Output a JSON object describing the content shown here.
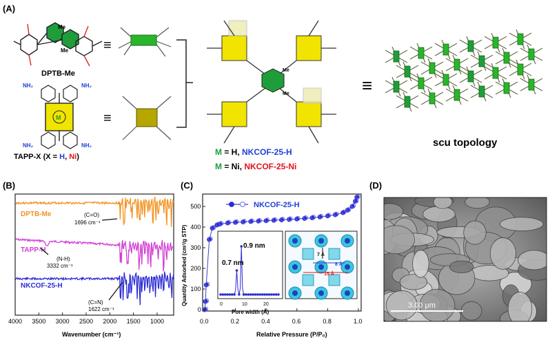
{
  "panels": {
    "a": {
      "label": "(A)"
    },
    "b": {
      "label": "(B)"
    },
    "c": {
      "label": "(C)"
    },
    "d": {
      "label": "(D)"
    }
  },
  "panel_a": {
    "monomer1_name": "DPTB-Me",
    "monomer2_name": "TAPP-X (X = ",
    "monomer2_h": "H",
    "monomer2_sep": ", ",
    "monomer2_ni": "Ni",
    "monomer2_end": ")",
    "equiv": "≡",
    "me_label": "Me",
    "m_label": "M",
    "nh2_label": "NH₂",
    "cof_h_prefix": "M",
    "cof_h_mid": " = H, ",
    "cof_h_name": "NKCOF-25-H",
    "cof_ni_prefix": "M",
    "cof_ni_mid": " = Ni, ",
    "cof_ni_name": "NKCOF-25-Ni",
    "topology": "scu topology",
    "colors": {
      "green": "#1f9d3a",
      "olive": "#b5a600",
      "blue": "#1f3fd8",
      "red": "#e0141e"
    }
  },
  "panel_b": {
    "traces": [
      {
        "name": "DPTB-Me",
        "color": "#f39220"
      },
      {
        "name": "TAPP-H",
        "color": "#d23fd3"
      },
      {
        "name": "NKCOF-25-H",
        "color": "#2b2bd6"
      }
    ],
    "annotations": [
      {
        "bond": "(C=O)",
        "value": "1696 cm⁻¹"
      },
      {
        "bond": "(N-H)",
        "value": "3332 cm⁻¹"
      },
      {
        "bond": "(C=N)",
        "value": "1622 cm⁻¹"
      }
    ],
    "xlabel": "Wavenumber (cm⁻¹)",
    "xticks": [
      "4000",
      "3500",
      "3000",
      "2500",
      "2000",
      "1500",
      "1000"
    ]
  },
  "chart_data": {
    "type": "line",
    "series": [
      {
        "name": "NKCOF-25-H"
      }
    ],
    "x": [
      0.0,
      0.005,
      0.01,
      0.03,
      0.05,
      0.08,
      0.1,
      0.15,
      0.2,
      0.25,
      0.3,
      0.35,
      0.4,
      0.45,
      0.5,
      0.55,
      0.6,
      0.65,
      0.7,
      0.75,
      0.8,
      0.85,
      0.9,
      0.93,
      0.96,
      0.98,
      0.99
    ],
    "y": [
      0,
      40,
      120,
      340,
      395,
      410,
      415,
      420,
      423,
      425,
      427,
      429,
      431,
      433,
      435,
      437,
      439,
      442,
      445,
      449,
      454,
      460,
      470,
      482,
      500,
      525,
      545
    ],
    "xlabel": "Relative Pressure (P/P₀)",
    "ylabel": "Quantity Adsorbed (cm³/g STP)",
    "xlim": [
      0,
      1
    ],
    "ylim": [
      0,
      550
    ],
    "xticks": [
      "0.0",
      "0.2",
      "0.4",
      "0.6",
      "0.8",
      "1.0"
    ],
    "yticks": [
      "0",
      "100",
      "200",
      "300",
      "400",
      "500"
    ],
    "inset": {
      "xlabel": "Pore width (Å)",
      "xticks": [
        "0",
        "10",
        "20"
      ],
      "peaks": [
        {
          "x": 7,
          "label": "0.7 nm"
        },
        {
          "x": 9,
          "label": "0.9 nm"
        }
      ]
    },
    "pore_labels": [
      "7 Å",
      "8 Å",
      "15 Å"
    ]
  },
  "panel_d": {
    "scale_bar": "3.00 μm"
  }
}
